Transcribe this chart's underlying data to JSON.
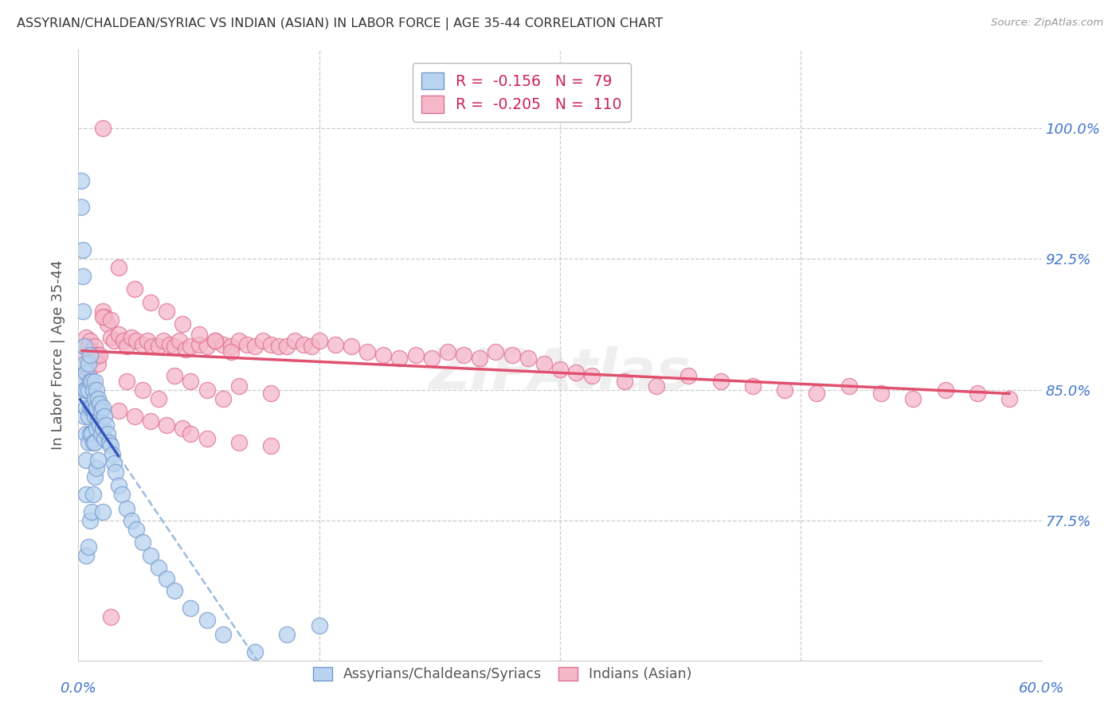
{
  "title": "ASSYRIAN/CHALDEAN/SYRIAC VS INDIAN (ASIAN) IN LABOR FORCE | AGE 35-44 CORRELATION CHART",
  "source": "Source: ZipAtlas.com",
  "ylabel": "In Labor Force | Age 35-44",
  "ytick_labels": [
    "77.5%",
    "85.0%",
    "92.5%",
    "100.0%"
  ],
  "ytick_values": [
    0.775,
    0.85,
    0.925,
    1.0
  ],
  "xlim": [
    0.0,
    0.6
  ],
  "ylim": [
    0.695,
    1.045
  ],
  "legend_blue_r": "-0.156",
  "legend_blue_n": "79",
  "legend_pink_r": "-0.205",
  "legend_pink_n": "110",
  "legend_label_blue": "Assyrians/Chaldeans/Syriacs",
  "legend_label_pink": "Indians (Asian)",
  "blue_face": "#b8d4f0",
  "blue_edge": "#7799cc",
  "pink_face": "#f5b8cb",
  "pink_edge": "#e07090",
  "blue_line_color": "#3355bb",
  "pink_line_color": "#e05070",
  "blue_dash_color": "#99bbdd",
  "grid_color": "#cccccc",
  "text_color": "#4477cc",
  "title_color": "#333333",
  "source_color": "#999999",
  "watermark_text": "ZIPAtlas",
  "blue_x": [
    0.001,
    0.002,
    0.002,
    0.003,
    0.003,
    0.003,
    0.004,
    0.004,
    0.004,
    0.004,
    0.005,
    0.005,
    0.005,
    0.005,
    0.005,
    0.005,
    0.006,
    0.006,
    0.006,
    0.006,
    0.007,
    0.007,
    0.007,
    0.007,
    0.008,
    0.008,
    0.008,
    0.009,
    0.009,
    0.009,
    0.01,
    0.01,
    0.01,
    0.01,
    0.011,
    0.011,
    0.011,
    0.012,
    0.012,
    0.013,
    0.013,
    0.014,
    0.014,
    0.015,
    0.015,
    0.016,
    0.016,
    0.017,
    0.018,
    0.019,
    0.02,
    0.021,
    0.022,
    0.023,
    0.025,
    0.027,
    0.03,
    0.033,
    0.036,
    0.04,
    0.045,
    0.05,
    0.055,
    0.06,
    0.07,
    0.08,
    0.09,
    0.11,
    0.13,
    0.15,
    0.005,
    0.006,
    0.007,
    0.008,
    0.009,
    0.01,
    0.011,
    0.012,
    0.015
  ],
  "blue_y": [
    0.855,
    0.97,
    0.955,
    0.93,
    0.915,
    0.895,
    0.875,
    0.865,
    0.85,
    0.835,
    0.86,
    0.85,
    0.84,
    0.825,
    0.81,
    0.79,
    0.865,
    0.85,
    0.835,
    0.82,
    0.87,
    0.855,
    0.84,
    0.825,
    0.855,
    0.84,
    0.825,
    0.85,
    0.838,
    0.82,
    0.855,
    0.845,
    0.835,
    0.82,
    0.85,
    0.84,
    0.828,
    0.845,
    0.832,
    0.842,
    0.83,
    0.838,
    0.825,
    0.84,
    0.828,
    0.835,
    0.822,
    0.83,
    0.825,
    0.82,
    0.818,
    0.813,
    0.808,
    0.803,
    0.795,
    0.79,
    0.782,
    0.775,
    0.77,
    0.763,
    0.755,
    0.748,
    0.742,
    0.735,
    0.725,
    0.718,
    0.71,
    0.7,
    0.71,
    0.715,
    0.755,
    0.76,
    0.775,
    0.78,
    0.79,
    0.8,
    0.805,
    0.81,
    0.78
  ],
  "pink_x": [
    0.002,
    0.003,
    0.004,
    0.005,
    0.005,
    0.006,
    0.006,
    0.007,
    0.008,
    0.009,
    0.01,
    0.011,
    0.012,
    0.013,
    0.015,
    0.016,
    0.018,
    0.02,
    0.022,
    0.025,
    0.028,
    0.03,
    0.033,
    0.036,
    0.04,
    0.043,
    0.046,
    0.05,
    0.053,
    0.057,
    0.06,
    0.063,
    0.067,
    0.07,
    0.075,
    0.08,
    0.085,
    0.09,
    0.095,
    0.1,
    0.105,
    0.11,
    0.115,
    0.12,
    0.125,
    0.13,
    0.135,
    0.14,
    0.145,
    0.15,
    0.16,
    0.17,
    0.18,
    0.19,
    0.2,
    0.21,
    0.22,
    0.23,
    0.24,
    0.25,
    0.26,
    0.27,
    0.28,
    0.29,
    0.3,
    0.31,
    0.32,
    0.34,
    0.36,
    0.38,
    0.4,
    0.42,
    0.44,
    0.46,
    0.48,
    0.5,
    0.52,
    0.54,
    0.56,
    0.58,
    0.025,
    0.035,
    0.045,
    0.055,
    0.065,
    0.075,
    0.085,
    0.095,
    0.015,
    0.02,
    0.03,
    0.04,
    0.05,
    0.06,
    0.07,
    0.08,
    0.09,
    0.1,
    0.12,
    0.015,
    0.025,
    0.035,
    0.045,
    0.055,
    0.065,
    0.07,
    0.08,
    0.1,
    0.12,
    0.02
  ],
  "pink_y": [
    0.86,
    0.87,
    0.875,
    0.88,
    0.865,
    0.875,
    0.86,
    0.878,
    0.872,
    0.868,
    0.875,
    0.87,
    0.865,
    0.87,
    0.895,
    0.892,
    0.888,
    0.88,
    0.878,
    0.882,
    0.878,
    0.875,
    0.88,
    0.878,
    0.876,
    0.878,
    0.875,
    0.875,
    0.878,
    0.876,
    0.875,
    0.878,
    0.873,
    0.875,
    0.876,
    0.875,
    0.878,
    0.876,
    0.875,
    0.878,
    0.876,
    0.875,
    0.878,
    0.876,
    0.875,
    0.875,
    0.878,
    0.876,
    0.875,
    0.878,
    0.876,
    0.875,
    0.872,
    0.87,
    0.868,
    0.87,
    0.868,
    0.872,
    0.87,
    0.868,
    0.872,
    0.87,
    0.868,
    0.865,
    0.862,
    0.86,
    0.858,
    0.855,
    0.852,
    0.858,
    0.855,
    0.852,
    0.85,
    0.848,
    0.852,
    0.848,
    0.845,
    0.85,
    0.848,
    0.845,
    0.92,
    0.908,
    0.9,
    0.895,
    0.888,
    0.882,
    0.878,
    0.872,
    0.892,
    0.89,
    0.855,
    0.85,
    0.845,
    0.858,
    0.855,
    0.85,
    0.845,
    0.852,
    0.848,
    1.0,
    0.838,
    0.835,
    0.832,
    0.83,
    0.828,
    0.825,
    0.822,
    0.82,
    0.818,
    0.72
  ]
}
